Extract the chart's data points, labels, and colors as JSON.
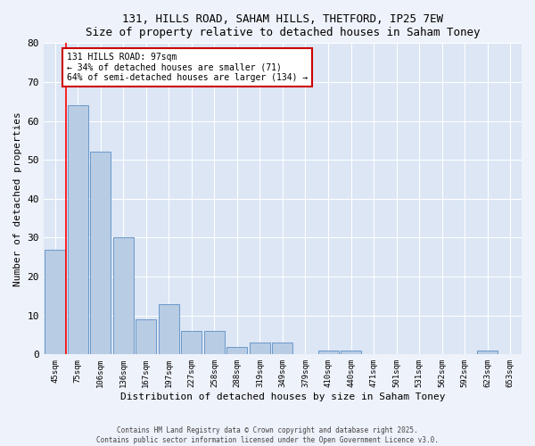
{
  "title1": "131, HILLS ROAD, SAHAM HILLS, THETFORD, IP25 7EW",
  "title2": "Size of property relative to detached houses in Saham Toney",
  "xlabel": "Distribution of detached houses by size in Saham Toney",
  "ylabel": "Number of detached properties",
  "categories": [
    "45sqm",
    "75sqm",
    "106sqm",
    "136sqm",
    "167sqm",
    "197sqm",
    "227sqm",
    "258sqm",
    "288sqm",
    "319sqm",
    "349sqm",
    "379sqm",
    "410sqm",
    "440sqm",
    "471sqm",
    "501sqm",
    "531sqm",
    "562sqm",
    "592sqm",
    "623sqm",
    "653sqm"
  ],
  "values": [
    27,
    64,
    52,
    30,
    9,
    13,
    6,
    6,
    2,
    3,
    3,
    0,
    1,
    1,
    0,
    0,
    0,
    0,
    0,
    1,
    0
  ],
  "bar_color": "#b8cce4",
  "bar_edge_color": "#5b8ec4",
  "vline_x": 0.5,
  "annotation_text": "131 HILLS ROAD: 97sqm\n← 34% of detached houses are smaller (71)\n64% of semi-detached houses are larger (134) →",
  "annotation_box_color": "#ffffff",
  "annotation_box_edge_color": "#cc0000",
  "ylim": [
    0,
    80
  ],
  "yticks": [
    0,
    10,
    20,
    30,
    40,
    50,
    60,
    70,
    80
  ],
  "plot_bg_color": "#dce6f5",
  "fig_bg_color": "#eef2fa",
  "footer1": "Contains HM Land Registry data © Crown copyright and database right 2025.",
  "footer2": "Contains public sector information licensed under the Open Government Licence v3.0."
}
